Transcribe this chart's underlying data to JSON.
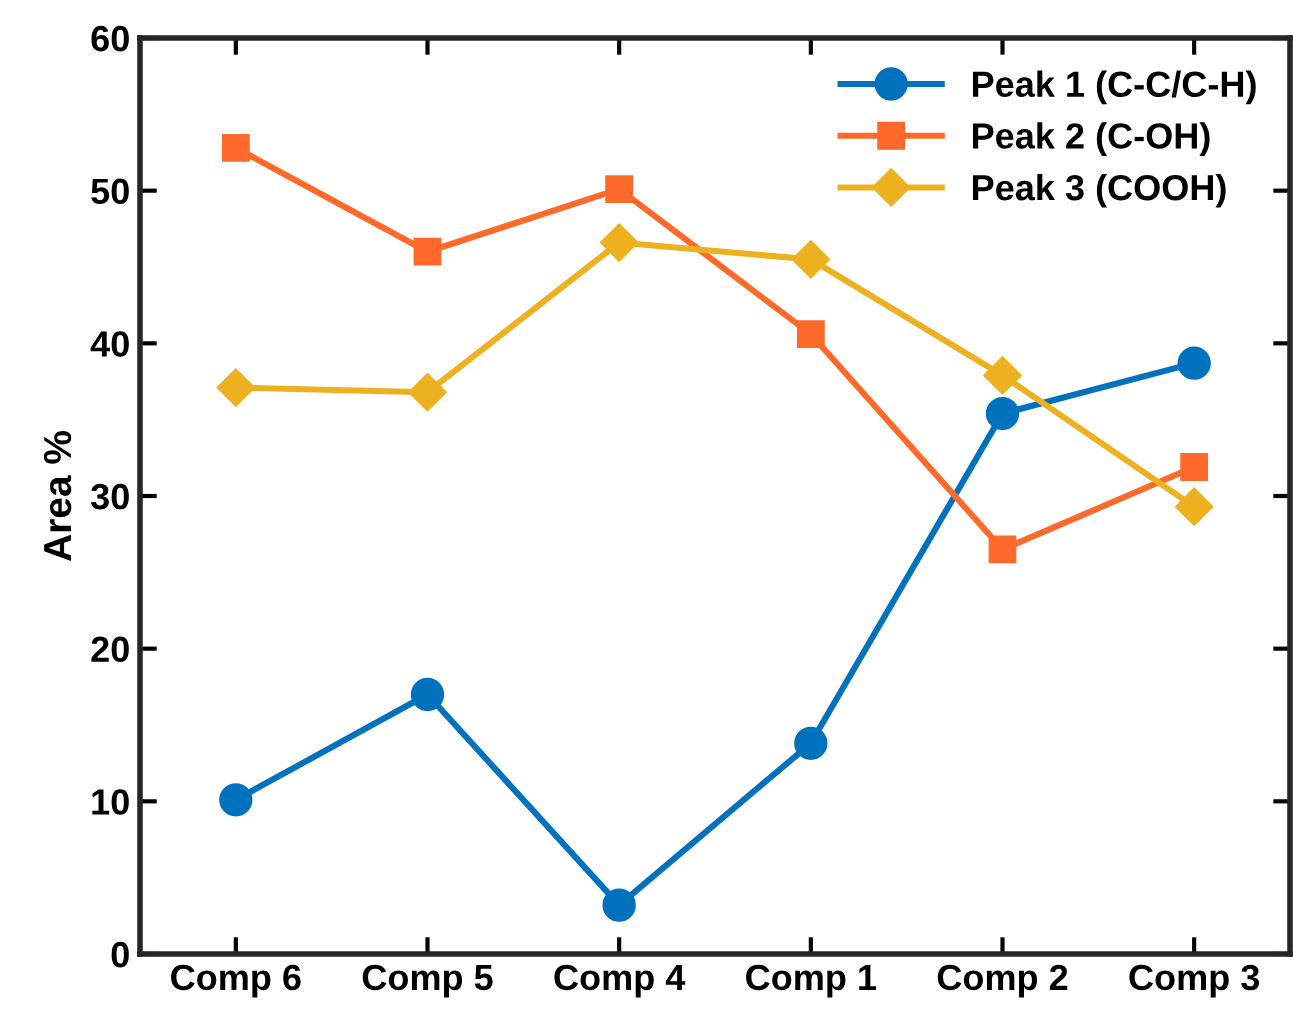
{
  "chart_data": {
    "type": "line",
    "ylabel": "Area %",
    "categories": [
      "Comp 6",
      "Comp 5",
      "Comp 4",
      "Comp 1",
      "Comp 2",
      "Comp 3"
    ],
    "series": [
      {
        "name": "Peak 1 (C-C/C-H)",
        "color": "#0072bd",
        "marker": "circle",
        "values": [
          10.1,
          17.0,
          3.2,
          13.8,
          35.4,
          38.7
        ]
      },
      {
        "name": "Peak 2 (C-OH)",
        "color": "#ff6929",
        "marker": "square",
        "values": [
          52.8,
          46.0,
          50.1,
          40.6,
          26.5,
          31.9
        ]
      },
      {
        "name": "Peak 3 (COOH)",
        "color": "#edb120",
        "marker": "diamond",
        "values": [
          37.1,
          36.8,
          46.6,
          45.5,
          37.9,
          29.3
        ]
      }
    ],
    "ylim": [
      0,
      60
    ],
    "yticks": [
      0,
      10,
      20,
      30,
      40,
      50,
      60
    ],
    "grid": false,
    "legend": "top right",
    "line_style": "solid"
  }
}
